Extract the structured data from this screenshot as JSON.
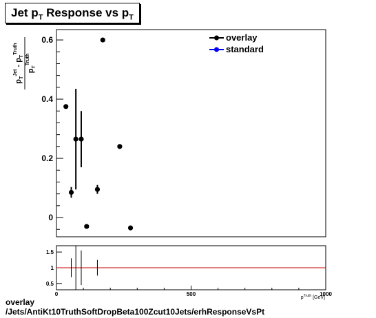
{
  "title_parts": {
    "a": "Jet p",
    "b": "T",
    "c": " Response vs p",
    "d": "T"
  },
  "footer": {
    "line1": "overlay",
    "line2": "/Jets/AntiKt10TruthSoftDropBeta100Zcut10Jets/erhResponseVsPt"
  },
  "colors": {
    "overlay": "#000000",
    "standard": "#0000ff",
    "ratio_line": "#cc0000",
    "axis": "#000000"
  },
  "chart_data": [
    {
      "type": "scatter",
      "title": "Jet pT Response vs pT",
      "ylabel": "(pT^Jet - pT^Truth) / pT^Truth",
      "xlim": [
        0,
        1000
      ],
      "ylim": [
        -0.065,
        0.635
      ],
      "y_ticks": [
        0,
        0.2,
        0.4,
        0.6
      ],
      "y_tick_labels": [
        "0",
        "0.2",
        "0.4",
        "0.6"
      ],
      "legend": {
        "placement": "top-right",
        "entries": [
          "overlay",
          "standard"
        ]
      },
      "series": [
        {
          "name": "overlay",
          "points": [
            {
              "x": 35,
              "y": 0.375,
              "yerr": 0.0
            },
            {
              "x": 55,
              "y": 0.085,
              "yerr": 0.018
            },
            {
              "x": 72,
              "y": 0.265,
              "yerr": 0.17
            },
            {
              "x": 92,
              "y": 0.265,
              "yerr": 0.095
            },
            {
              "x": 112,
              "y": -0.03,
              "yerr": 0.0
            },
            {
              "x": 152,
              "y": 0.095,
              "yerr": 0.015
            },
            {
              "x": 172,
              "y": 0.6,
              "yerr": 0.0
            },
            {
              "x": 235,
              "y": 0.24,
              "yerr": 0.0
            },
            {
              "x": 275,
              "y": -0.035,
              "yerr": 0.0
            }
          ]
        },
        {
          "name": "standard",
          "points": []
        }
      ]
    },
    {
      "type": "scatter",
      "title": "",
      "xlabel": "p_T^Truth [GeV]",
      "xlim": [
        0,
        1000
      ],
      "ylim": [
        0.3,
        1.7
      ],
      "x_ticks": [
        0,
        500,
        1000
      ],
      "x_tick_labels": [
        "0",
        "500",
        "1000"
      ],
      "y_ticks": [
        0.5,
        1,
        1.5
      ],
      "y_tick_labels": [
        "0.5",
        "1",
        "1.5"
      ],
      "reference_line": 1,
      "series": [
        {
          "name": "ratio",
          "points": [
            {
              "x": 55,
              "y": 1.0,
              "yerr": 0.3
            },
            {
              "x": 72,
              "y": 1.0,
              "yerr": 0.7
            },
            {
              "x": 92,
              "y": 1.0,
              "yerr": 0.55
            },
            {
              "x": 152,
              "y": 1.0,
              "yerr": 0.25
            }
          ]
        }
      ]
    }
  ]
}
